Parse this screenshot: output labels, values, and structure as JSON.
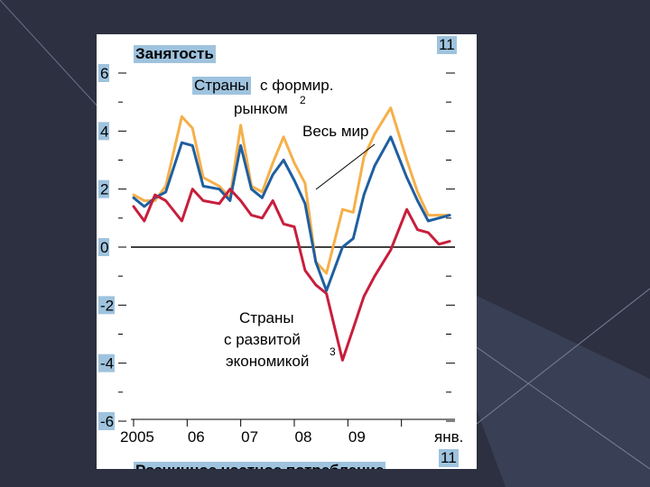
{
  "colors": {
    "background": "#2c3040",
    "card": "#ffffff",
    "highlight": "#9fc3de",
    "emerging": "#f5b04a",
    "world": "#1f5fa0",
    "advanced": "#c81e3c",
    "zero_line": "#000000"
  },
  "header": {
    "title": "Занятость",
    "corner_top": "11",
    "corner_bottom": "11"
  },
  "labels": {
    "emerging_line1_hl": "Страны",
    "emerging_line1_rest": " с формир.",
    "emerging_line2": "рынком",
    "emerging_sup": "2",
    "world": "Весь мир",
    "advanced_line1": "Страны",
    "advanced_line2": "с развитой",
    "advanced_line3": "экономикой",
    "advanced_sup": "3",
    "cut_off_text": "Розничное частное потребление"
  },
  "chart_data": {
    "type": "line",
    "title": "Занятость",
    "ylim": [
      -6,
      6
    ],
    "y_ticks": [
      "6",
      "4",
      "2",
      "0",
      "-2",
      "-4",
      "-6"
    ],
    "x_ticks": [
      "2005",
      "06",
      "07",
      "08",
      "09",
      "янв."
    ],
    "xlim": [
      2004.95,
      2011.0
    ],
    "grid": false,
    "series": [
      {
        "name": "Страны с формир. рынком",
        "color": "#f5b04a",
        "x": [
          2005.0,
          2005.2,
          2005.4,
          2005.6,
          2005.9,
          2006.1,
          2006.3,
          2006.6,
          2006.8,
          2007.0,
          2007.2,
          2007.4,
          2007.6,
          2007.8,
          2008.0,
          2008.2,
          2008.4,
          2008.6,
          2008.9,
          2009.1,
          2009.3,
          2009.5,
          2009.8,
          2010.1,
          2010.3,
          2010.5,
          2010.7,
          2010.9
        ],
        "y": [
          1.8,
          1.6,
          1.6,
          2.1,
          4.5,
          4.1,
          2.4,
          2.1,
          1.7,
          4.2,
          2.1,
          1.9,
          2.9,
          3.8,
          2.9,
          2.2,
          -0.5,
          -0.9,
          1.3,
          1.2,
          3.1,
          3.9,
          4.8,
          3.0,
          1.9,
          1.1,
          1.1,
          1.1
        ]
      },
      {
        "name": "Весь мир",
        "color": "#1f5fa0",
        "x": [
          2005.0,
          2005.2,
          2005.4,
          2005.6,
          2005.9,
          2006.1,
          2006.3,
          2006.6,
          2006.8,
          2007.0,
          2007.2,
          2007.4,
          2007.6,
          2007.8,
          2008.0,
          2008.2,
          2008.4,
          2008.6,
          2008.9,
          2009.1,
          2009.3,
          2009.5,
          2009.8,
          2010.1,
          2010.3,
          2010.5,
          2010.7,
          2010.9
        ],
        "y": [
          1.7,
          1.4,
          1.7,
          1.9,
          3.6,
          3.5,
          2.1,
          2.0,
          1.6,
          3.5,
          2.0,
          1.7,
          2.5,
          3.0,
          2.3,
          1.5,
          -0.5,
          -1.5,
          0.0,
          0.3,
          1.8,
          2.8,
          3.8,
          2.4,
          1.6,
          0.9,
          1.0,
          1.1
        ]
      },
      {
        "name": "Страны с развитой экономикой",
        "color": "#c81e3c",
        "x": [
          2005.0,
          2005.2,
          2005.4,
          2005.6,
          2005.9,
          2006.1,
          2006.3,
          2006.6,
          2006.8,
          2007.0,
          2007.2,
          2007.4,
          2007.6,
          2007.8,
          2008.0,
          2008.2,
          2008.4,
          2008.6,
          2008.9,
          2009.1,
          2009.3,
          2009.5,
          2009.8,
          2010.1,
          2010.3,
          2010.5,
          2010.7,
          2010.9
        ],
        "y": [
          1.4,
          0.9,
          1.8,
          1.6,
          0.9,
          2.0,
          1.6,
          1.5,
          2.0,
          1.6,
          1.1,
          1.0,
          1.6,
          0.8,
          0.7,
          -0.8,
          -1.3,
          -1.6,
          -3.9,
          -2.8,
          -1.7,
          -1.0,
          -0.1,
          1.3,
          0.6,
          0.5,
          0.1,
          0.2
        ]
      }
    ]
  }
}
